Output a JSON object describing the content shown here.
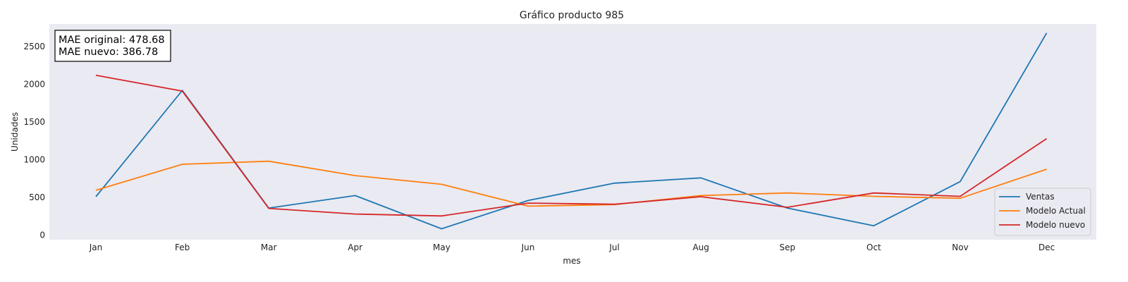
{
  "chart_data": {
    "type": "line",
    "title": "Gráfico producto 985",
    "xlabel": "mes",
    "ylabel": "Unidades",
    "categories": [
      "Jan",
      "Feb",
      "Mar",
      "Apr",
      "May",
      "Jun",
      "Jul",
      "Aug",
      "Sep",
      "Oct",
      "Nov",
      "Dec"
    ],
    "yticks": [
      0,
      500,
      1000,
      1500,
      2000,
      2500
    ],
    "ylim": [
      -60,
      2800
    ],
    "grid": false,
    "legend_position": "lower-right",
    "annotation": {
      "line1": "MAE original: 478.68",
      "line2": "MAE nuevo: 386.78",
      "position": "top-left"
    },
    "series": [
      {
        "name": "Ventas",
        "color": "#1f77b4",
        "values": [
          510,
          1920,
          360,
          525,
          85,
          460,
          690,
          760,
          360,
          125,
          710,
          2680
        ]
      },
      {
        "name": "Modelo Actual",
        "color": "#ff7f0e",
        "values": [
          595,
          940,
          980,
          790,
          675,
          385,
          405,
          525,
          560,
          515,
          490,
          875
        ]
      },
      {
        "name": "Modelo nuevo",
        "color": "#d62728",
        "values": [
          2120,
          1910,
          355,
          280,
          255,
          425,
          410,
          510,
          370,
          560,
          515,
          1280
        ]
      }
    ]
  }
}
